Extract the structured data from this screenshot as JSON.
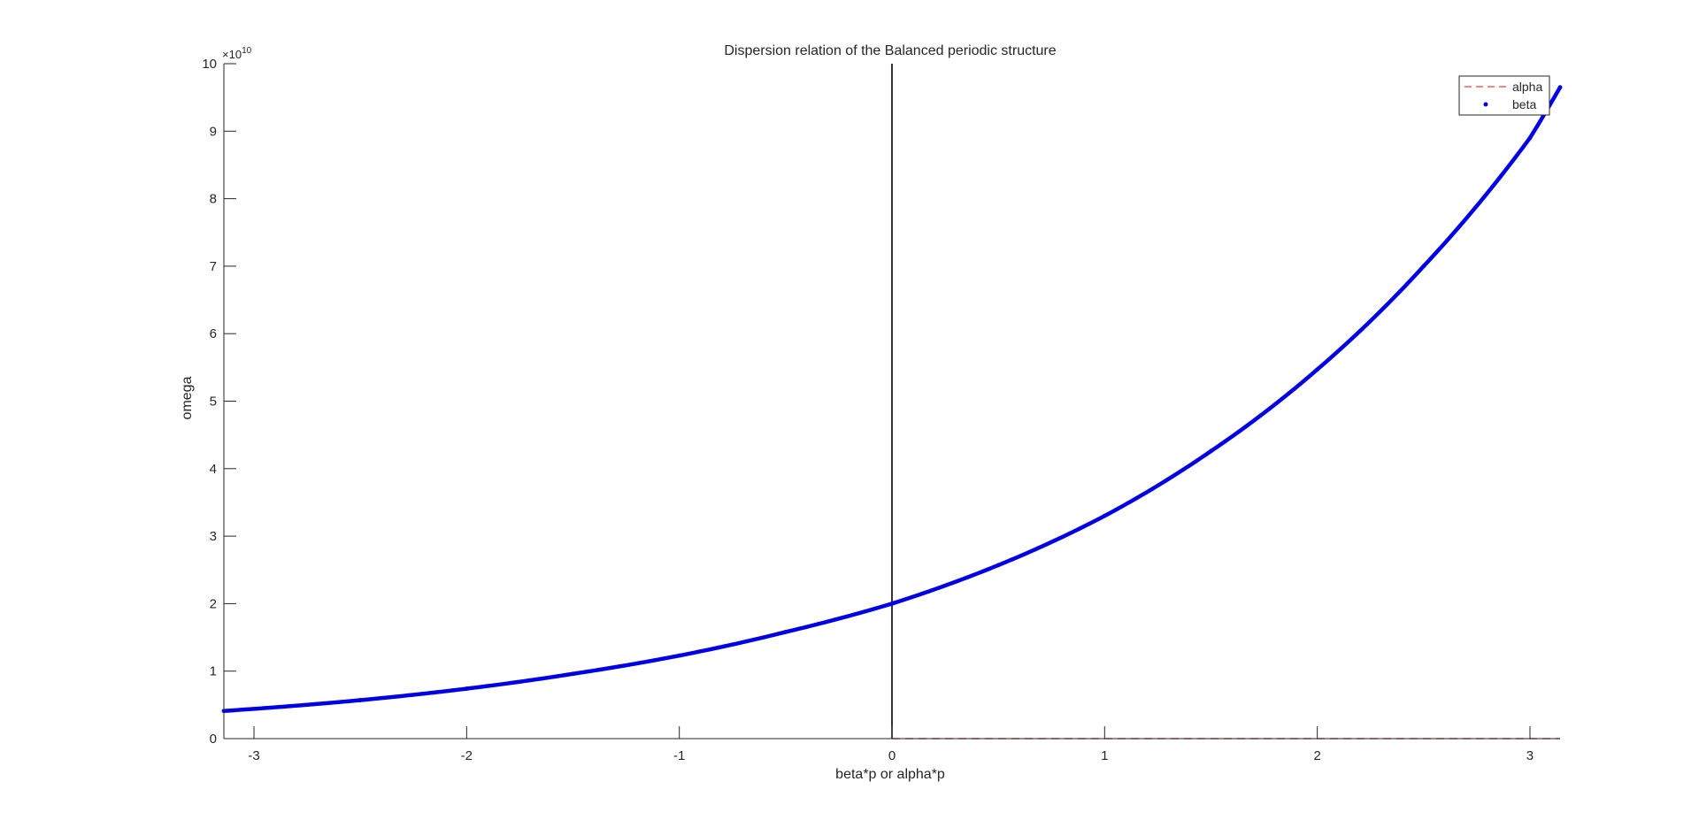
{
  "chart_data": {
    "type": "line",
    "title": "Dispersion relation of the Balanced periodic structure",
    "xlabel": "beta*p or alpha*p",
    "ylabel": "omega",
    "y_exponent_label": "×10",
    "y_exponent_power": "10",
    "y_scale": 10000000000,
    "xlim": [
      -3.1416,
      3.1416
    ],
    "ylim": [
      0,
      100000000000
    ],
    "x_ticks": [
      -3,
      -2,
      -1,
      0,
      1,
      2,
      3
    ],
    "x_tick_labels": [
      "-3",
      "-2",
      "-1",
      "0",
      "1",
      "2",
      "3"
    ],
    "y_ticks": [
      0,
      10000000000,
      20000000000,
      30000000000,
      40000000000,
      50000000000,
      60000000000,
      70000000000,
      80000000000,
      90000000000,
      100000000000
    ],
    "y_tick_labels": [
      "0",
      "1",
      "2",
      "3",
      "4",
      "5",
      "6",
      "7",
      "8",
      "9",
      "10"
    ],
    "grid": false,
    "legend_position": "top-right",
    "series": [
      {
        "name": "alpha",
        "style": "dashed",
        "color": "#e8413c",
        "x": [
          0,
          0.5,
          1,
          1.5,
          2,
          2.5,
          3,
          3.1416
        ],
        "y": [
          0,
          0,
          0,
          0,
          0,
          0,
          0,
          0
        ]
      },
      {
        "name": "beta",
        "style": "dots",
        "color": "#0000e6",
        "x": [
          -3.1416,
          -2.5,
          -2,
          -1.5,
          -1,
          -0.5,
          0,
          0.5,
          1,
          1.5,
          2,
          2.5,
          3,
          3.1416
        ],
        "y": [
          4100000000,
          5700000000,
          7400000000,
          9600000000,
          12300000000,
          15800000000,
          20000000000,
          25700000000,
          33000000000,
          42600000000,
          54700000000,
          70000000000,
          89000000000,
          96500000000
        ]
      }
    ],
    "annotations": [
      {
        "type": "vertical-line",
        "x": 0,
        "color": "#000000"
      }
    ]
  }
}
